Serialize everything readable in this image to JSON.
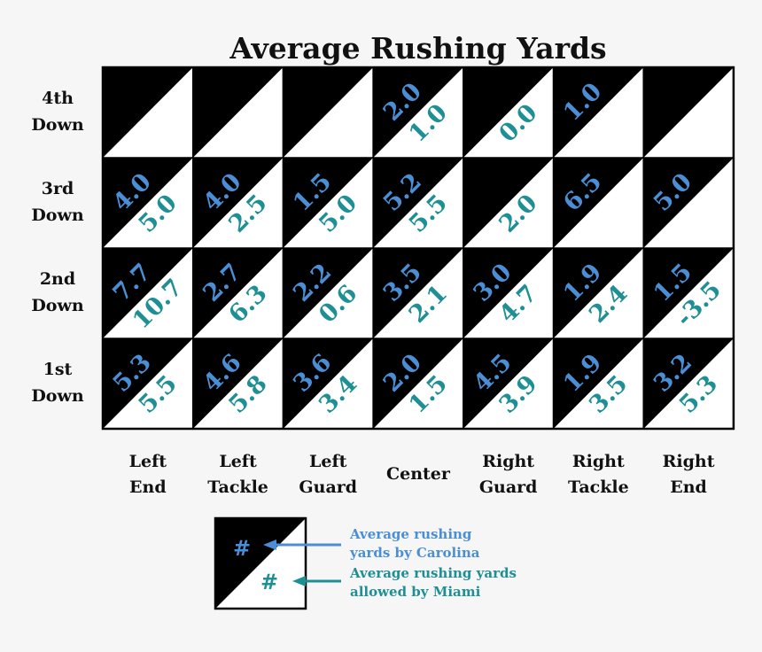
{
  "colors": {
    "carolina": "#4a8fd6",
    "miami": "#1e8f95",
    "dark": "#000000",
    "light": "#ffffff"
  },
  "chart_data": {
    "type": "table",
    "title": "Average Rushing Yards",
    "rows": [
      "4th Down",
      "3rd Down",
      "2nd Down",
      "1st Down"
    ],
    "row_lines": [
      [
        "4th",
        "Down"
      ],
      [
        "3rd",
        "Down"
      ],
      [
        "2nd",
        "Down"
      ],
      [
        "1st",
        "Down"
      ]
    ],
    "columns": [
      "Left End",
      "Left Tackle",
      "Left Guard",
      "Center",
      "Right Guard",
      "Right Tackle",
      "Right End"
    ],
    "column_lines": [
      [
        "Left",
        "End"
      ],
      [
        "Left",
        "Tackle"
      ],
      [
        "Left",
        "Guard"
      ],
      [
        "Center"
      ],
      [
        "Right",
        "Guard"
      ],
      [
        "Right",
        "Tackle"
      ],
      [
        "Right",
        "End"
      ]
    ],
    "series": [
      {
        "name": "Average rushing yards by Carolina",
        "values": [
          [
            null,
            null,
            null,
            "2.0",
            null,
            "1.0",
            null
          ],
          [
            "4.0",
            "4.0",
            "1.5",
            "5.2",
            null,
            "6.5",
            "5.0"
          ],
          [
            "7.7",
            "2.7",
            "2.2",
            "3.5",
            "3.0",
            "1.9",
            "1.5"
          ],
          [
            "5.3",
            "4.6",
            "3.6",
            "2.0",
            "4.5",
            "1.9",
            "3.2"
          ]
        ]
      },
      {
        "name": "Average rushing yards allowed by Miami",
        "values": [
          [
            null,
            null,
            null,
            "1.0",
            "0.0",
            null,
            null
          ],
          [
            "5.0",
            "2.5",
            "5.0",
            "5.5",
            "2.0",
            null,
            null
          ],
          [
            "10.7",
            "6.3",
            "0.6",
            "2.1",
            "4.7",
            "2.4",
            "-3.5"
          ],
          [
            "5.5",
            "5.8",
            "3.4",
            "1.5",
            "3.9",
            "3.5",
            "5.3"
          ]
        ]
      }
    ]
  },
  "legend": {
    "symbol": "#",
    "carolina_lines": [
      "Average rushing",
      "yards by Carolina"
    ],
    "miami_lines": [
      "Average rushing yards",
      "allowed by Miami"
    ]
  }
}
